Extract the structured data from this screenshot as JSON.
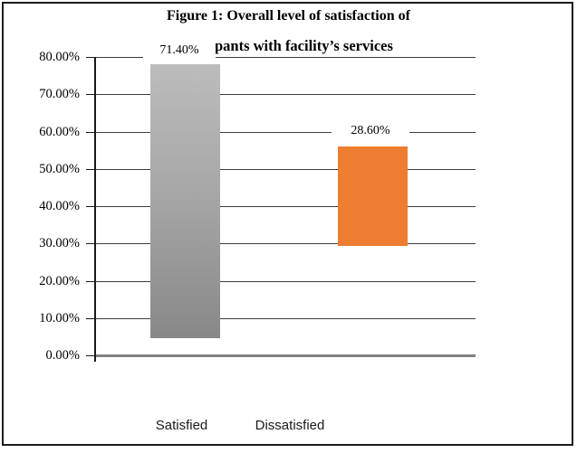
{
  "chart_data": {
    "type": "bar",
    "title_line1": "Figure 1: Overall level of satisfaction of",
    "title_line2_visible": "pants with facility’s services",
    "categories": [
      "Satisfied",
      "Dissatisfied"
    ],
    "values": [
      71.4,
      28.6
    ],
    "data_labels": [
      "71.40%",
      "28.60%"
    ],
    "ylim": [
      0,
      80
    ],
    "ytick_labels": [
      "80.00%",
      "70.00%",
      "60.00%",
      "50.00%",
      "40.00%",
      "30.00%",
      "20.00%",
      "10.00%",
      "0.00%"
    ],
    "ytick_values": [
      80,
      70,
      60,
      50,
      40,
      30,
      20,
      10,
      0
    ],
    "grid": true,
    "legend": "none",
    "colors": {
      "satisfied_gradient_top": "#bcbcbc",
      "satisfied_gradient_bottom": "#888888",
      "dissatisfied": "#ed7d31",
      "gridline": "#3d3d3d",
      "zero_line": "#808080",
      "frame_border": "#1c1c1c"
    },
    "bar_visual_spans_pct": [
      [
        4.6,
        78.1
      ],
      [
        29.3,
        56.0
      ]
    ]
  }
}
